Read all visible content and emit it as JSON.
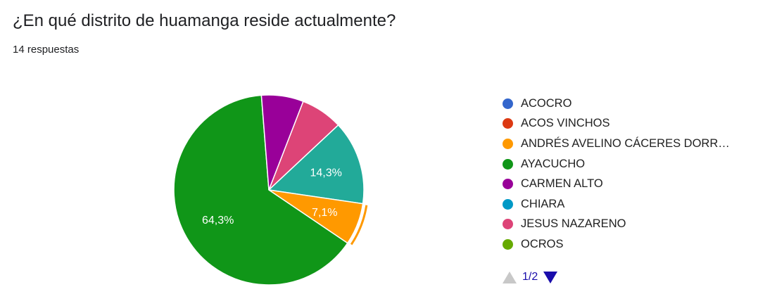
{
  "question": "¿En qué distrito de huamanga reside actualmente?",
  "responses": "14 respuestas",
  "pager": {
    "label": "1/2",
    "up_icon": "arrow-up-icon",
    "down_icon": "arrow-down-icon"
  },
  "chart_data": {
    "type": "pie",
    "total": 14,
    "slices": [
      {
        "name": "ACOCRO",
        "value": 0,
        "percent": 0,
        "color": "#3366cc",
        "label": ""
      },
      {
        "name": "ACOS VINCHOS",
        "value": 0,
        "percent": 0,
        "color": "#dc3912",
        "label": ""
      },
      {
        "name": "ANDRÉS AVELINO CÁCERES DORR…",
        "value": 1,
        "percent": 7.1,
        "color": "#ff9900",
        "label": "7,1%",
        "highlight": true
      },
      {
        "name": "AYACUCHO",
        "value": 9,
        "percent": 64.3,
        "color": "#109618",
        "label": "64,3%"
      },
      {
        "name": "CARMEN ALTO",
        "value": 1,
        "percent": 7.1,
        "color": "#990099",
        "label": ""
      },
      {
        "name": "CHIARA",
        "value": 0,
        "percent": 0,
        "color": "#0099c6",
        "label": ""
      },
      {
        "name": "JESUS NAZARENO",
        "value": 1,
        "percent": 7.1,
        "color": "#dd4477",
        "label": ""
      },
      {
        "name": "OCROS",
        "value": 0,
        "percent": 0,
        "color": "#66aa00",
        "label": ""
      },
      {
        "name": "",
        "value": 2,
        "percent": 14.3,
        "color": "#22aa99",
        "label": "14,3%",
        "legend_hidden": true
      }
    ],
    "legend": [
      "ACOCRO",
      "ACOS VINCHOS",
      "ANDRÉS AVELINO CÁCERES DORR…",
      "AYACUCHO",
      "CARMEN ALTO",
      "CHIARA",
      "JESUS NAZARENO",
      "OCROS"
    ],
    "legend_position": "right"
  }
}
